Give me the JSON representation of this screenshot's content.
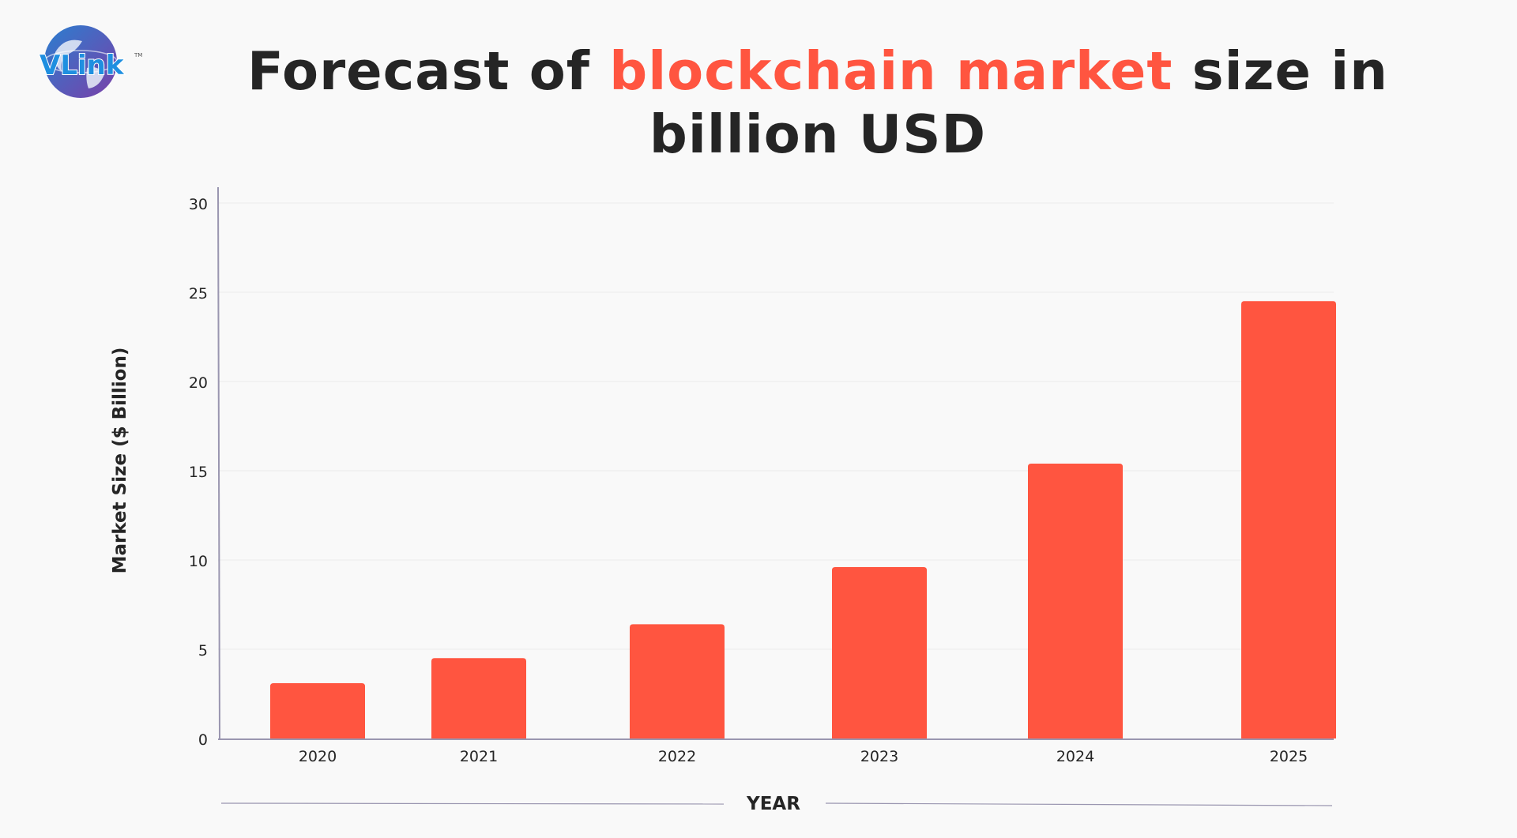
{
  "logo": {
    "text": "VLink",
    "tm": "TM"
  },
  "title": {
    "part1": "Forecast of ",
    "highlight": "blockchain market",
    "part2": " size in billion USD"
  },
  "colors": {
    "bar": "#ff5540",
    "text": "#252525",
    "axis": "#9a96b0",
    "grid": "#ebebeb",
    "background": "#f9f9f9"
  },
  "chart_data": {
    "type": "bar",
    "title": "Forecast of blockchain market size in billion USD",
    "xlabel": "YEAR",
    "ylabel": "Market Size ($ Billion)",
    "categories": [
      "2020",
      "2021",
      "2022",
      "2023",
      "2024",
      "2025"
    ],
    "values": [
      3.1,
      4.5,
      6.4,
      9.6,
      15.4,
      24.5
    ],
    "ylim": [
      0,
      30
    ],
    "yticks": [
      0,
      5,
      10,
      15,
      20,
      25,
      30
    ],
    "grid": true,
    "legend": "none"
  }
}
